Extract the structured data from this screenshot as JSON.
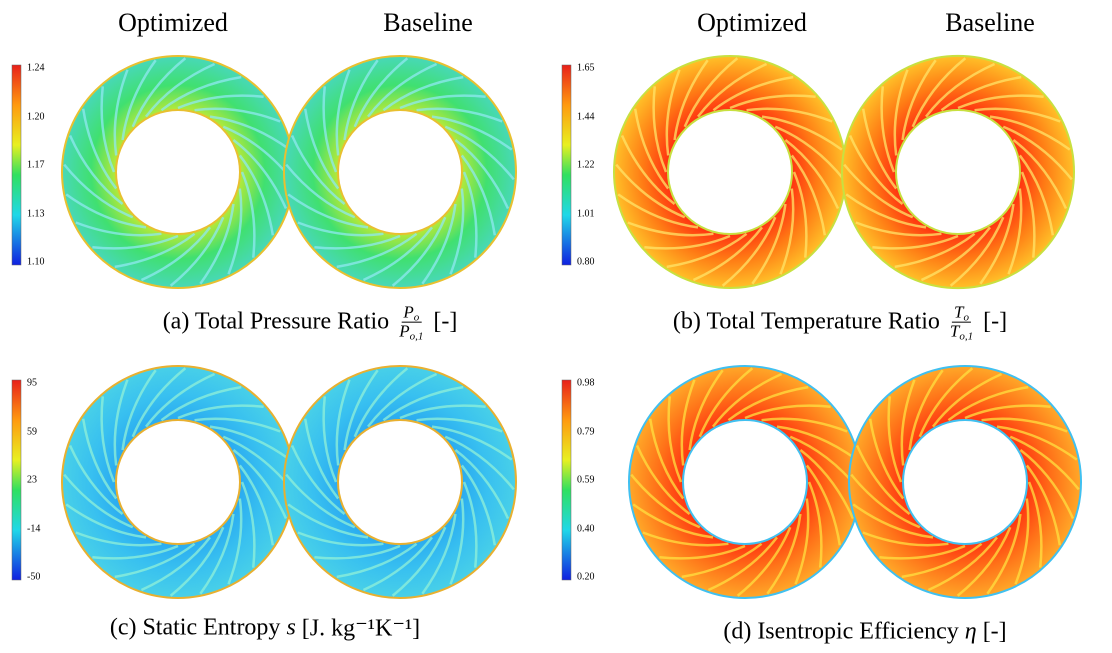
{
  "panels": [
    {
      "columns": [
        "Optimized",
        "Baseline"
      ],
      "colorbar_ticks": [
        "1.24",
        "1.20",
        "1.17",
        "1.13",
        "1.10"
      ],
      "caption": {
        "text": "(a) Total Pressure Ratio",
        "numerator": "P",
        "numerator_sub": "o",
        "denominator": "P",
        "denominator_sub": "o,1",
        "unit": "[-]"
      }
    },
    {
      "columns": [
        "Optimized",
        "Baseline"
      ],
      "colorbar_ticks": [
        "1.65",
        "1.44",
        "1.22",
        "1.01",
        "0.80"
      ],
      "caption": {
        "text": "(b) Total Temperature Ratio",
        "numerator": "T",
        "numerator_sub": "o",
        "denominator": "T",
        "denominator_sub": "o,1",
        "unit": "[-]"
      }
    },
    {
      "colorbar_ticks": [
        "95",
        "59",
        "23",
        "-14",
        "-50"
      ],
      "caption": {
        "text": "(c) Static Entropy",
        "symbol": "s",
        "unit": "[J. kg⁻¹K⁻¹]"
      }
    },
    {
      "colorbar_ticks": [
        "0.98",
        "0.79",
        "0.59",
        "0.40",
        "0.20"
      ],
      "caption": {
        "text": "(d) Isentropic Efficiency",
        "symbol": "η",
        "unit": "[-]"
      }
    }
  ]
}
